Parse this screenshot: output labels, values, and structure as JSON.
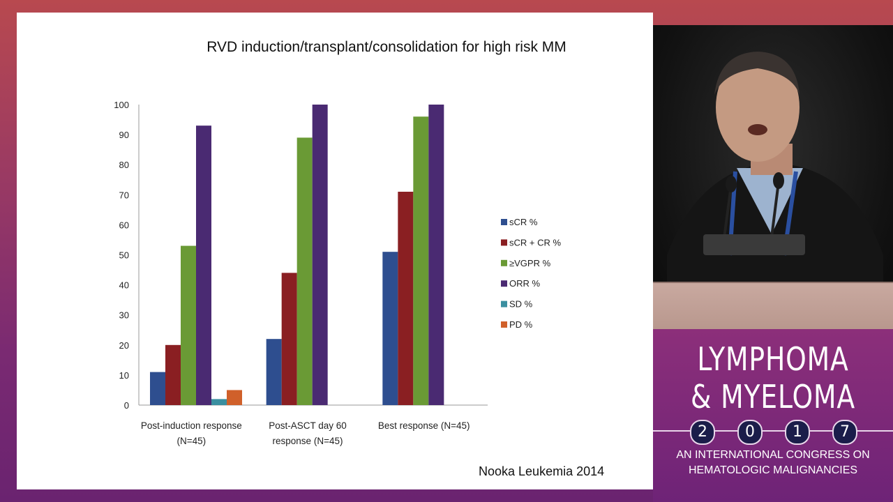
{
  "slide": {
    "title": "RVD induction/transplant/consolidation for high risk MM",
    "citation": "Nooka Leukemia 2014"
  },
  "chart_data": {
    "type": "bar",
    "title": "RVD induction/transplant/consolidation for high risk MM",
    "categories": [
      "Post-induction response (N=45)",
      "Post-ASCT day 60 response (N=45)",
      "Best response (N=45)"
    ],
    "category_lines": [
      [
        "Post-induction response",
        "(N=45)"
      ],
      [
        "Post-ASCT day 60",
        "response (N=45)"
      ],
      [
        "Best response (N=45)"
      ]
    ],
    "series": [
      {
        "name": "sCR %",
        "color": "#2e4e8f",
        "values": [
          11,
          22,
          51
        ]
      },
      {
        "name": "sCR + CR %",
        "color": "#8a1f22",
        "values": [
          20,
          44,
          71
        ]
      },
      {
        "name": "≥VGPR %",
        "color": "#6a9a35",
        "values": [
          53,
          89,
          96
        ]
      },
      {
        "name": "ORR %",
        "color": "#4a2a72",
        "values": [
          93,
          100,
          100
        ]
      },
      {
        "name": "SD %",
        "color": "#3a8fa0",
        "values": [
          2,
          0,
          0
        ]
      },
      {
        "name": "PD %",
        "color": "#d0602a",
        "values": [
          5,
          0,
          0
        ]
      }
    ],
    "yticks": [
      0,
      10,
      20,
      30,
      40,
      50,
      60,
      70,
      80,
      90,
      100
    ],
    "ylim": [
      0,
      100
    ],
    "xlabel": "",
    "ylabel": "",
    "grid": false,
    "legend_position": "right"
  },
  "branding": {
    "line1": "LYMPHOMA",
    "line2": "& MYELOMA",
    "year_digits": [
      "2",
      "0",
      "1",
      "7"
    ],
    "tagline1": "AN INTERNATIONAL CONGRESS ON",
    "tagline2": "HEMATOLOGIC MALIGNANCIES"
  }
}
